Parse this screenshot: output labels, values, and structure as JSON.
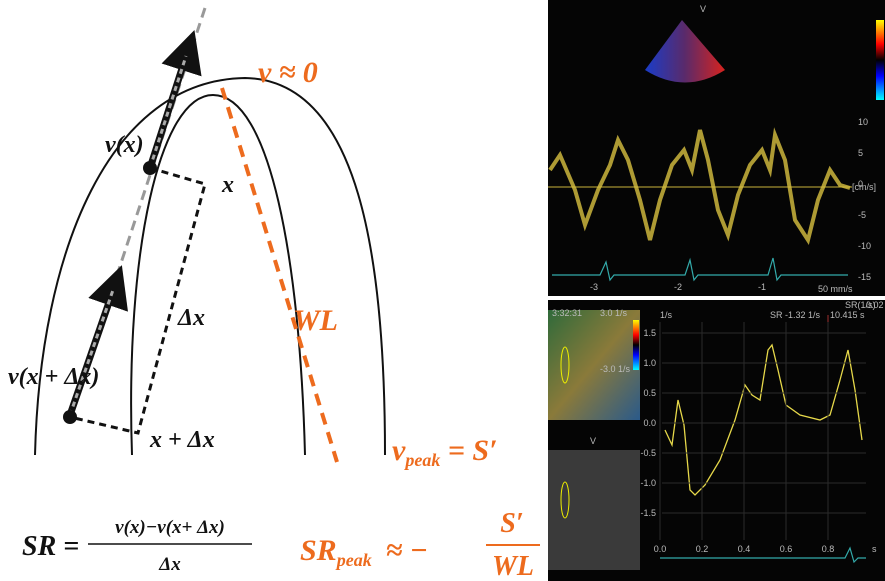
{
  "diagram": {
    "labels": {
      "v_zero": "v ≈ 0",
      "v_x": "v(x)",
      "x": "x",
      "delta_x": "Δx",
      "wl": "WL",
      "v_x_dx": "v(x + Δx)",
      "x_dx": "x + Δx"
    },
    "v_peak": {
      "base": "v",
      "sub": "peak",
      "rest": " = S′"
    },
    "sr_formula": {
      "lhs": "SR =",
      "numerator": "v(x)−v(x+ Δx)",
      "denominator": "Δx"
    },
    "sr_peak": {
      "base": "SR",
      "sub": "peak",
      "approx": "≈ −",
      "numerator": "S′",
      "denominator": "WL"
    }
  },
  "velocity_panel": {
    "marker": "V",
    "yticks": [
      "10",
      "5",
      "0",
      "-5",
      "-10",
      "-15"
    ],
    "unit": "[cm/s]",
    "xticks": [
      "-3",
      "-2",
      "-1"
    ],
    "speed": "50 mm/s"
  },
  "strain_rate_panel": {
    "clock": "3:32:31",
    "color_max": "3.0 1/s",
    "color_min": "-3.0 1/s",
    "marker": "V",
    "y_unit": "1/s",
    "cursor": "SR -1.32 1/s",
    "cursor_time": "10.415 s",
    "header": "SR(1/s)",
    "header_value": "0.02",
    "yticks": [
      "1.5",
      "1.0",
      "0.5",
      "0.0",
      "-0.5",
      "-1.0",
      "-1.5"
    ],
    "xticks": [
      "0.0",
      "0.2",
      "0.4",
      "0.6",
      "0.8"
    ],
    "x_unit": "s"
  }
}
